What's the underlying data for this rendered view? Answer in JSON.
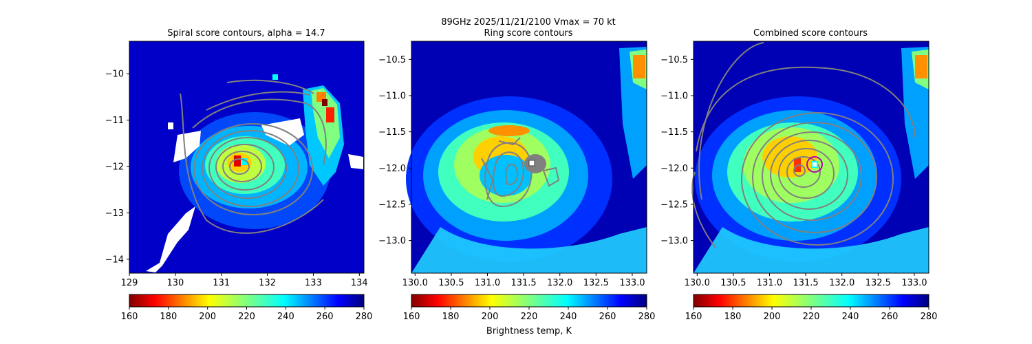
{
  "figure": {
    "suptitle_line1": "89GHz  2025/11/21/2100    Vmax = 70 kt",
    "colorbar_label": "Brightness temp, K",
    "colormap": "jet_reversed",
    "colorbar_range": [
      160,
      280
    ],
    "colorbar_ticks": [
      "160",
      "180",
      "200",
      "220",
      "240",
      "260",
      "280"
    ]
  },
  "chart_data": [
    {
      "type": "heatmap",
      "title": "Spiral score contours, alpha = 14.7",
      "xlim": [
        129.0,
        134.1
      ],
      "ylim": [
        -14.3,
        -9.3
      ],
      "xticks": [
        "129",
        "130",
        "131",
        "132",
        "133",
        "134"
      ],
      "yticks": [
        "−14",
        "−13",
        "−12",
        "−11",
        "−10"
      ],
      "xtick_values": [
        129,
        130,
        131,
        132,
        133,
        134
      ],
      "ytick_values": [
        -14,
        -13,
        -12,
        -11,
        -10
      ],
      "center": [
        131.4,
        -12.1
      ],
      "contour_color": "#808080",
      "has_masked_white_regions": true
    },
    {
      "type": "heatmap",
      "title": "Ring score contours",
      "xlim": [
        129.95,
        133.2
      ],
      "ylim": [
        -13.45,
        -10.25
      ],
      "xticks": [
        "130.0",
        "130.5",
        "131.0",
        "131.5",
        "132.0",
        "132.5",
        "133.0"
      ],
      "yticks": [
        "−13.0",
        "−12.5",
        "−12.0",
        "−11.5",
        "−11.0",
        "−10.5"
      ],
      "xtick_values": [
        130.0,
        130.5,
        131.0,
        131.5,
        132.0,
        132.5,
        133.0
      ],
      "ytick_values": [
        -13.0,
        -12.5,
        -12.0,
        -11.5,
        -11.0,
        -10.5
      ],
      "center": [
        131.3,
        -12.1
      ],
      "marker": [
        131.58,
        -11.94
      ],
      "contour_color": "#808080"
    },
    {
      "type": "heatmap",
      "title": "Combined score contours",
      "xlim": [
        129.95,
        133.2
      ],
      "ylim": [
        -13.45,
        -10.25
      ],
      "xticks": [
        "130.0",
        "130.5",
        "131.0",
        "131.5",
        "132.0",
        "132.5",
        "133.0"
      ],
      "yticks": [
        "−13.0",
        "−12.5",
        "−12.0",
        "−11.5",
        "−11.0",
        "−10.5"
      ],
      "xtick_values": [
        130.0,
        130.5,
        131.0,
        131.5,
        132.0,
        132.5,
        133.0
      ],
      "ytick_values": [
        -13.0,
        -12.5,
        -12.0,
        -11.5,
        -11.0,
        -10.5
      ],
      "center": [
        131.4,
        -12.1
      ],
      "marker": [
        131.58,
        -11.94
      ],
      "marker_color": "#00ffff",
      "circle_color": "#b000b0",
      "contour_color": "#808080"
    }
  ]
}
